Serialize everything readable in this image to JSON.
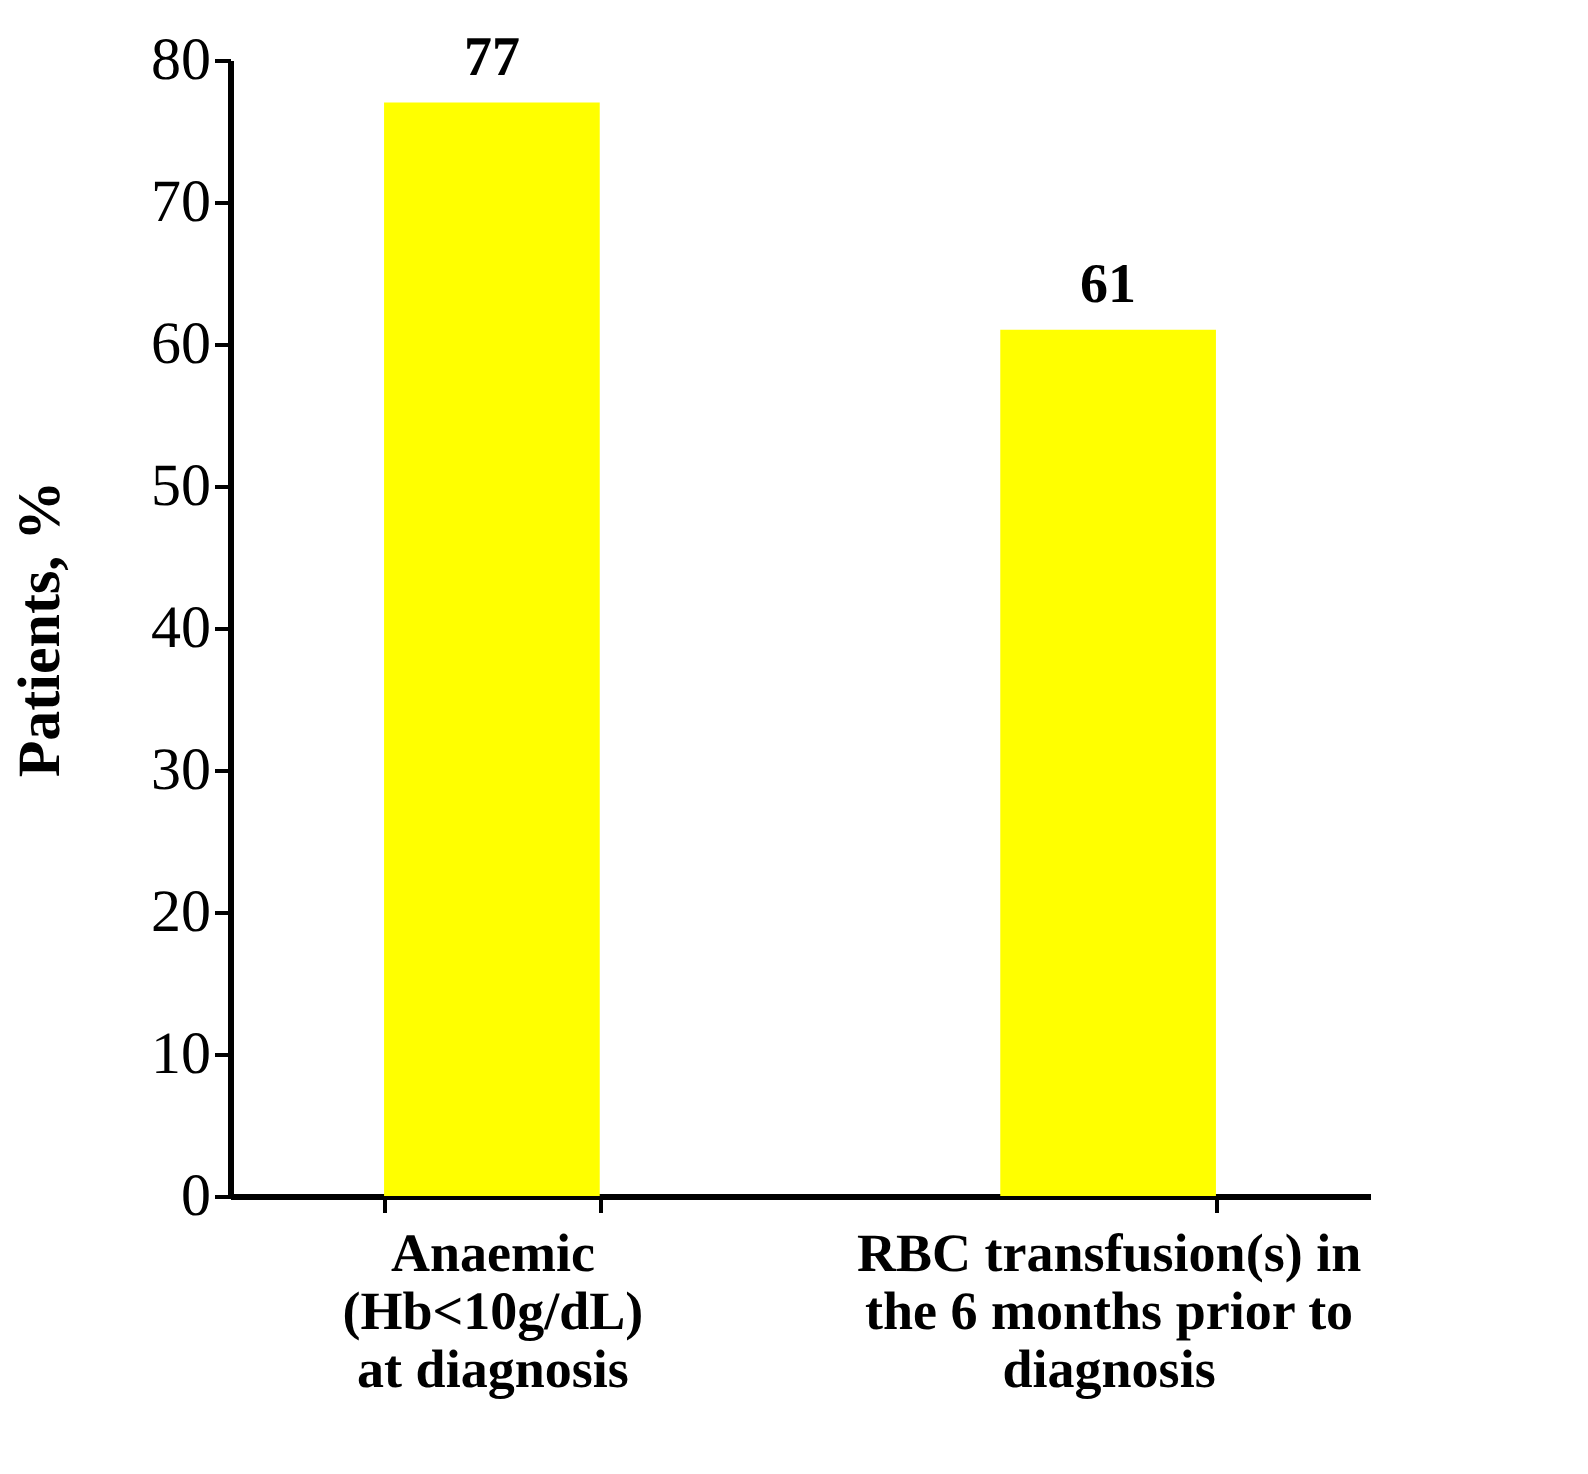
{
  "chart_data": {
    "type": "bar",
    "ylabel": "Patients, %",
    "categories": [
      "Anaemic\n(Hb<10g/dL)\nat diagnosis",
      "RBC transfusion(s) in\nthe 6 months prior to\ndiagnosis"
    ],
    "values": [
      77,
      61
    ],
    "color": "#ffff00",
    "data_labels": true,
    "ylim": [
      0,
      80
    ],
    "yticks": [
      0,
      10,
      20,
      30,
      40,
      50,
      60,
      70,
      80
    ],
    "grid": false
  }
}
